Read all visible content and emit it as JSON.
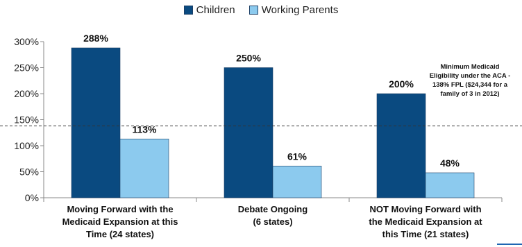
{
  "chart_data": {
    "type": "bar",
    "categories": [
      [
        "Moving Forward with the",
        "Medicaid Expansion at this",
        "Time (24 states)"
      ],
      [
        "Debate Ongoing",
        "(6 states)"
      ],
      [
        "NOT Moving Forward with",
        "the Medicaid Expansion at",
        "this Time (21 states)"
      ]
    ],
    "series": [
      {
        "name": "Children",
        "values": [
          288,
          250,
          200
        ],
        "labels": [
          "288%",
          "250%",
          "200%"
        ],
        "color": "#0a4a80"
      },
      {
        "name": "Working Parents",
        "values": [
          113,
          61,
          48
        ],
        "labels": [
          "113%",
          "61%",
          "48%"
        ],
        "color": "#8ccaee"
      }
    ],
    "ylim": [
      0,
      300
    ],
    "yticks": [
      0,
      50,
      100,
      150,
      200,
      250,
      300
    ],
    "ytick_labels": [
      "0%",
      "50%",
      "100%",
      "150%",
      "200%",
      "250%",
      "300%"
    ],
    "reference_line": {
      "value": 138,
      "style": "dashed"
    },
    "annotation": [
      "Minimum Medicaid",
      "Eligibility under the ACA -",
      "138% FPL ($24,344 for a",
      "family of 3 in 2012)"
    ],
    "legend_position": "top-center",
    "grid": false
  }
}
